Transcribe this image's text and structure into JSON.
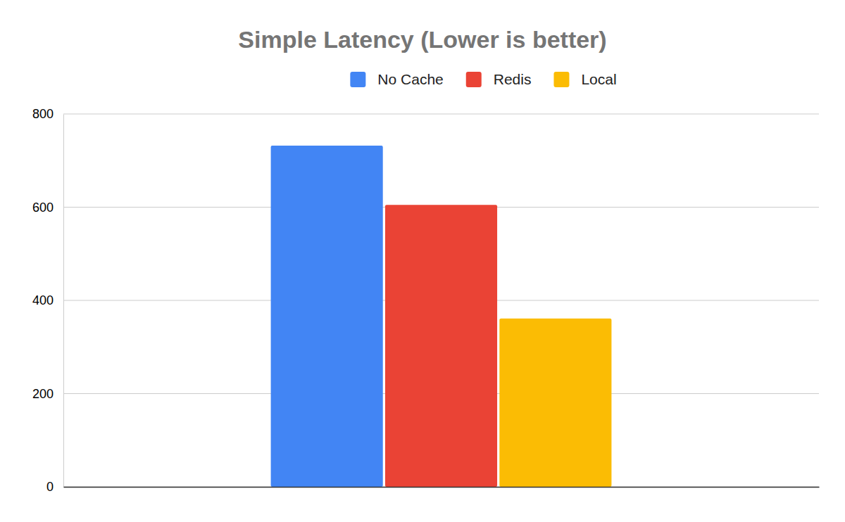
{
  "chart_data": {
    "type": "bar",
    "title": "Simple Latency (Lower is better)",
    "categories": [
      null
    ],
    "series": [
      {
        "name": "No Cache",
        "color": "#4285f4",
        "values": [
          732
        ]
      },
      {
        "name": "Redis",
        "color": "#ea4335",
        "values": [
          605
        ]
      },
      {
        "name": "Local",
        "color": "#fbbc04",
        "values": [
          361
        ]
      }
    ],
    "ylim": [
      0,
      800
    ],
    "yticks": [
      0,
      200,
      400,
      600,
      800
    ],
    "grid": true,
    "legend": "top"
  }
}
